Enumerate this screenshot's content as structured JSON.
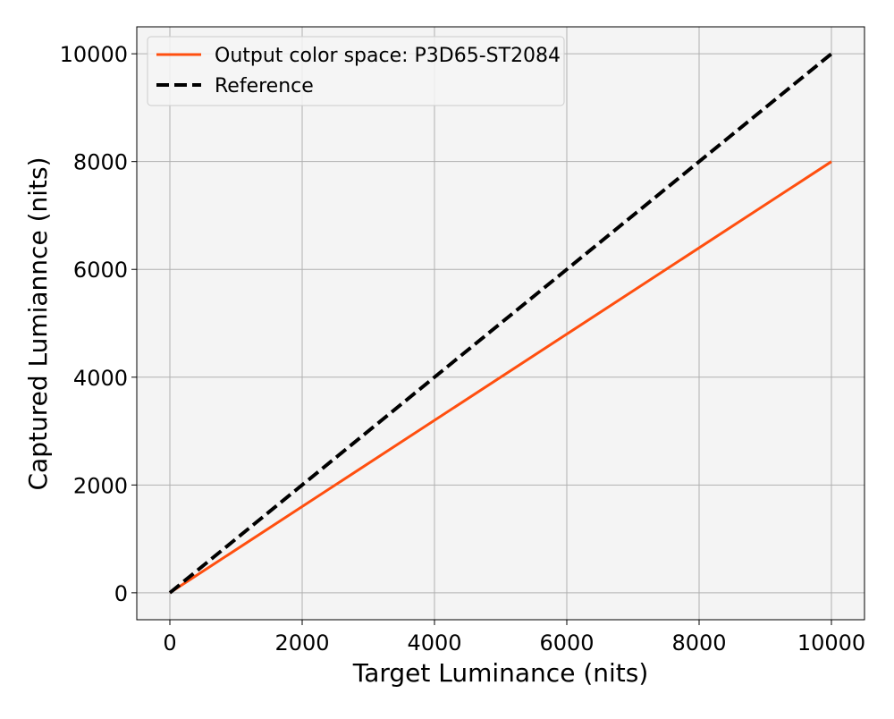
{
  "chart_data": {
    "type": "line",
    "title": "",
    "xlabel": "Target Luminance (nits)",
    "ylabel": "Captured Lumiannce (nits)",
    "xlim": [
      -500,
      10500
    ],
    "ylim": [
      -500,
      10500
    ],
    "xticks": [
      0,
      2000,
      4000,
      6000,
      8000,
      10000
    ],
    "yticks": [
      0,
      2000,
      4000,
      6000,
      8000,
      10000
    ],
    "xtick_labels": [
      "0",
      "2000",
      "4000",
      "6000",
      "8000",
      "10000"
    ],
    "ytick_labels": [
      "0",
      "2000",
      "4000",
      "6000",
      "8000",
      "10000"
    ],
    "grid": true,
    "legend_position": "top-left",
    "plot_background": "#f4f4f4",
    "grid_color": "#b0b0b0",
    "series": [
      {
        "name": "Output color space: P3D65-ST2084",
        "color": "#ff4f0f",
        "style": "solid",
        "x": [
          0,
          10000
        ],
        "y": [
          0,
          8000
        ]
      },
      {
        "name": "Reference",
        "color": "#000000",
        "style": "dashed",
        "x": [
          0,
          10000
        ],
        "y": [
          0,
          10000
        ]
      }
    ]
  }
}
